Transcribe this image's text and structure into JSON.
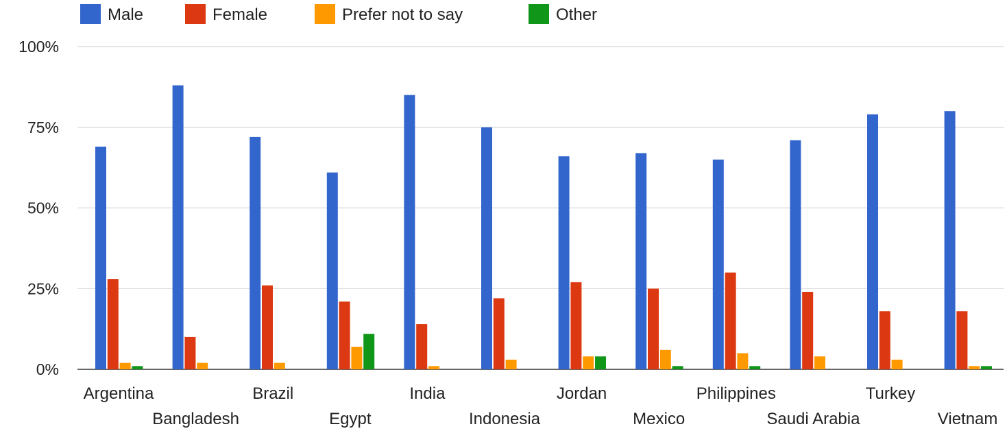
{
  "chart_data": {
    "type": "bar",
    "title": "",
    "xlabel": "",
    "ylabel": "",
    "ylim": [
      0,
      100
    ],
    "y_unit": "%",
    "yticks": [
      0,
      25,
      50,
      75,
      100
    ],
    "ytick_labels": [
      "0%",
      "25%",
      "50%",
      "75%",
      "100%"
    ],
    "grid": true,
    "legend": "top-left",
    "categories": [
      "Argentina",
      "Bangladesh",
      "Brazil",
      "Egypt",
      "India",
      "Indonesia",
      "Jordan",
      "Mexico",
      "Philippines",
      "Saudi Arabia",
      "Turkey",
      "Vietnam"
    ],
    "series": [
      {
        "name": "Male",
        "color": "#3366cc",
        "values": [
          69,
          88,
          72,
          61,
          85,
          75,
          66,
          67,
          65,
          71,
          79,
          80
        ]
      },
      {
        "name": "Female",
        "color": "#dc3912",
        "values": [
          28,
          10,
          26,
          21,
          14,
          22,
          27,
          25,
          30,
          24,
          18,
          18
        ]
      },
      {
        "name": "Prefer not to say",
        "color": "#ff9900",
        "values": [
          2,
          2,
          2,
          7,
          1,
          3,
          4,
          6,
          5,
          4,
          3,
          1
        ]
      },
      {
        "name": "Other",
        "color": "#109618",
        "values": [
          1,
          0,
          0,
          11,
          0,
          0,
          4,
          1,
          1,
          0,
          0,
          1
        ]
      }
    ]
  }
}
